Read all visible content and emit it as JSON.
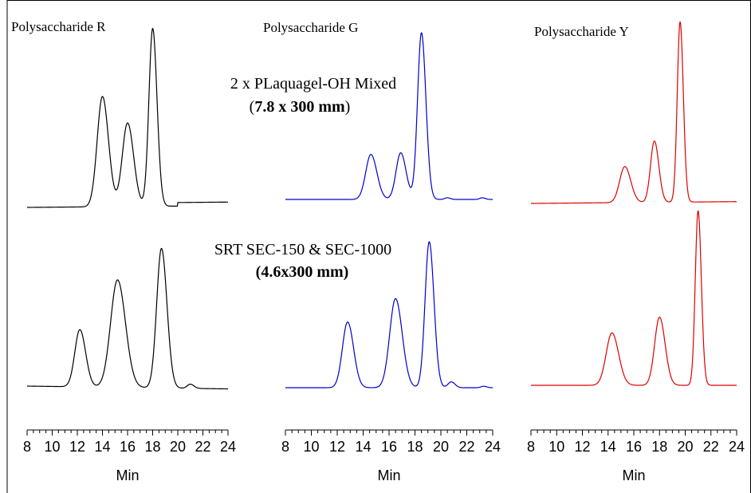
{
  "chart_data": [
    {
      "type": "line",
      "title": "Polysaccharide R",
      "xlabel": "Min",
      "xlim": [
        8,
        24
      ],
      "xticks": [
        "8",
        "10",
        "12",
        "14",
        "16",
        "18",
        "20",
        "22",
        "24"
      ],
      "color": "#000000",
      "series": [
        {
          "name": "2 x PLaquagel-OH Mixed (7.8 x 300 mm)",
          "baseline_end": 0.01,
          "tail_step_start": 20.0,
          "tail_step_value": 0.02,
          "peaks": [
            {
              "x": 14.0,
              "y": 0.62,
              "width": 0.42
            },
            {
              "x": 16.0,
              "y": 0.47,
              "width": 0.42
            },
            {
              "x": 18.0,
              "y": 1.0,
              "width": 0.3
            }
          ]
        },
        {
          "name": "SRT SEC-150 & SEC-1000 (4.6x300 mm)",
          "baseline_end": -0.02,
          "tail_step_start": 0,
          "tail_step_value": 0,
          "peaks": [
            {
              "x": 12.2,
              "y": 0.41,
              "width": 0.4
            },
            {
              "x": 15.2,
              "y": 0.77,
              "width": 0.55
            },
            {
              "x": 18.7,
              "y": 1.0,
              "width": 0.38
            },
            {
              "x": 21.0,
              "y": 0.03,
              "width": 0.25
            }
          ]
        }
      ]
    },
    {
      "type": "line",
      "title": "Polysaccharide G",
      "xlabel": "Min",
      "xlim": [
        8,
        24
      ],
      "xticks": [
        "8",
        "10",
        "12",
        "14",
        "16",
        "18",
        "20",
        "22",
        "24"
      ],
      "color": "#0000cc",
      "series": [
        {
          "name": "2 x PLaquagel-OH Mixed (7.8 x 300 mm)",
          "baseline_end": 0.0,
          "tail_step_start": 0,
          "tail_step_value": 0,
          "peaks": [
            {
              "x": 14.6,
              "y": 0.27,
              "width": 0.4
            },
            {
              "x": 16.9,
              "y": 0.28,
              "width": 0.36
            },
            {
              "x": 18.5,
              "y": 1.0,
              "width": 0.3
            },
            {
              "x": 20.5,
              "y": 0.01,
              "width": 0.2
            },
            {
              "x": 23.2,
              "y": 0.01,
              "width": 0.2
            }
          ]
        },
        {
          "name": "SRT SEC-150 & SEC-1000 (4.6x300 mm)",
          "baseline_end": 0.0,
          "tail_step_start": 0,
          "tail_step_value": 0,
          "peaks": [
            {
              "x": 12.8,
              "y": 0.45,
              "width": 0.4
            },
            {
              "x": 16.5,
              "y": 0.61,
              "width": 0.45
            },
            {
              "x": 19.1,
              "y": 1.0,
              "width": 0.32
            },
            {
              "x": 20.8,
              "y": 0.04,
              "width": 0.25
            },
            {
              "x": 23.3,
              "y": 0.01,
              "width": 0.2
            }
          ]
        }
      ]
    },
    {
      "type": "line",
      "title": "Polysaccharide Y",
      "xlabel": "Min",
      "xlim": [
        8,
        24
      ],
      "xticks": [
        "8",
        "10",
        "12",
        "14",
        "16",
        "18",
        "20",
        "22",
        "24"
      ],
      "color": "#dd0000",
      "series": [
        {
          "name": "2 x PLaquagel-OH Mixed (7.8 x 300 mm)",
          "baseline_end": 0.01,
          "tail_step_start": 0,
          "tail_step_value": 0,
          "peaks": [
            {
              "x": 15.3,
              "y": 0.2,
              "width": 0.4
            },
            {
              "x": 17.6,
              "y": 0.34,
              "width": 0.3
            },
            {
              "x": 19.6,
              "y": 1.0,
              "width": 0.22
            }
          ]
        },
        {
          "name": "SRT SEC-150 & SEC-1000 (4.6x300 mm)",
          "baseline_end": 0.0,
          "tail_step_start": 0,
          "tail_step_value": 0,
          "peaks": [
            {
              "x": 14.3,
              "y": 0.3,
              "width": 0.45
            },
            {
              "x": 18.0,
              "y": 0.39,
              "width": 0.38
            },
            {
              "x": 21.0,
              "y": 1.0,
              "width": 0.22
            }
          ]
        }
      ]
    }
  ],
  "annotations": {
    "top_column": {
      "line1": "2 x PLaquagel-OH Mixed",
      "line2": "7.8 x 300 mm",
      "paren_open": "(",
      "paren_close": ")"
    },
    "bottom_column": {
      "line1": "SRT SEC-150 & SEC-1000",
      "line2": "(4.6x300 mm)"
    }
  }
}
